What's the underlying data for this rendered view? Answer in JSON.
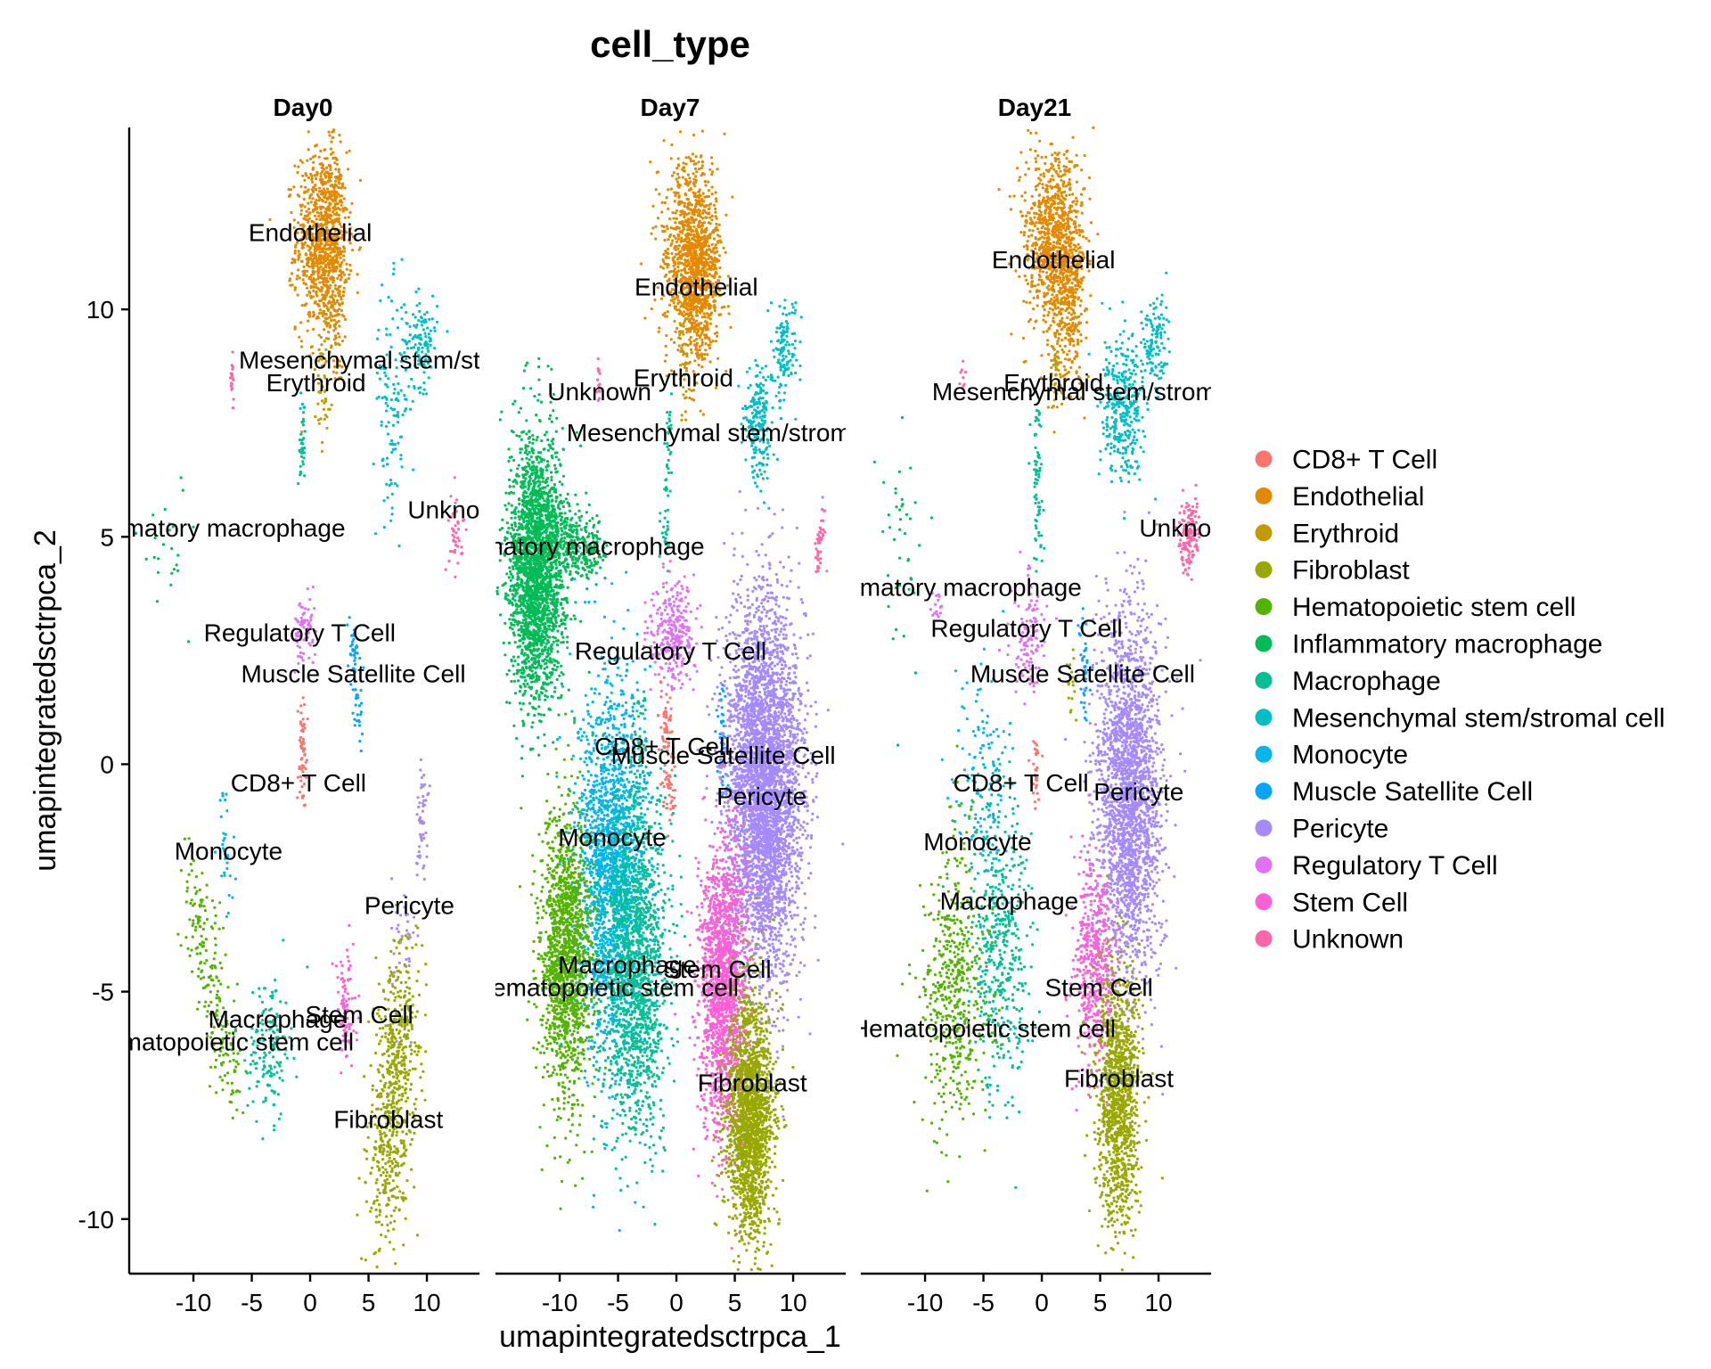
{
  "chart_data": {
    "type": "scatter",
    "title": "cell_type",
    "xlabel": "umapintegratedsctrpca_1",
    "ylabel": "umapintegratedsctrpca_2",
    "xlim": [
      -15.5,
      14.5
    ],
    "ylim": [
      -11.2,
      14.0
    ],
    "x_ticks": [
      -10,
      -5,
      0,
      5,
      10
    ],
    "x_tick_labels": [
      "-10",
      "-5",
      "0",
      "5",
      "10"
    ],
    "y_ticks": [
      -10,
      -5,
      0,
      5,
      10
    ],
    "y_tick_labels": [
      "-10",
      "-5",
      "0",
      "5",
      "10"
    ],
    "grid": false,
    "legend_position": "right",
    "series": [
      {
        "name": "CD8+ T Cell",
        "color": "#F8766D"
      },
      {
        "name": "Endothelial",
        "color": "#E38900"
      },
      {
        "name": "Erythroid",
        "color": "#C49A00"
      },
      {
        "name": "Fibroblast",
        "color": "#99A800"
      },
      {
        "name": "Hematopoietic stem cell",
        "color": "#53B400"
      },
      {
        "name": "Inflammatory macrophage",
        "color": "#00BC56"
      },
      {
        "name": "Macrophage",
        "color": "#00C094"
      },
      {
        "name": "Mesenchymal stem/stromal cell",
        "color": "#00BFC4"
      },
      {
        "name": "Monocyte",
        "color": "#00B6EB"
      },
      {
        "name": "Muscle Satellite Cell",
        "color": "#06A4FF"
      },
      {
        "name": "Pericyte",
        "color": "#A58AFF"
      },
      {
        "name": "Regulatory T Cell",
        "color": "#DF70F8"
      },
      {
        "name": "Stem Cell",
        "color": "#FB61D7"
      },
      {
        "name": "Unknown",
        "color": "#FF66A8"
      }
    ],
    "facets": [
      {
        "title": "Day0",
        "clusters": [
          {
            "type": "Endothelial",
            "shape": "blob",
            "cx": 1,
            "cy": 11.5,
            "sx": 1.1,
            "sy": 1.0,
            "n": 900
          },
          {
            "type": "Endothelial",
            "shape": "blob",
            "cx": 2.2,
            "cy": 11.0,
            "sx": 0.5,
            "sy": 1.4,
            "n": 200
          },
          {
            "type": "Erythroid",
            "shape": "blob",
            "cx": 1.2,
            "cy": 8.8,
            "sx": 0.3,
            "sy": 0.9,
            "n": 60
          },
          {
            "type": "Mesenchymal stem/stromal cell",
            "shape": "blob",
            "cx": 9.5,
            "cy": 9.3,
            "sx": 0.7,
            "sy": 0.5,
            "n": 120
          },
          {
            "type": "Mesenchymal stem/stromal cell",
            "shape": "blob",
            "cx": 7,
            "cy": 8.0,
            "sx": 0.8,
            "sy": 1.2,
            "n": 120
          },
          {
            "type": "Macrophage",
            "shape": "line",
            "x1": -0.6,
            "y1": 8.0,
            "x2": -0.8,
            "y2": 6.2,
            "w": 0.15,
            "n": 40
          },
          {
            "type": "Inflammatory macrophage",
            "shape": "blob",
            "cx": -12.5,
            "cy": 5.0,
            "sx": 1.0,
            "sy": 0.8,
            "n": 25
          },
          {
            "type": "Unknown",
            "shape": "blob",
            "cx": -6.7,
            "cy": 8.4,
            "sx": 0.1,
            "sy": 0.25,
            "n": 20
          },
          {
            "type": "Unknown",
            "shape": "blob",
            "cx": 12.5,
            "cy": 5.2,
            "sx": 0.3,
            "sy": 0.5,
            "n": 40
          },
          {
            "type": "Regulatory T Cell",
            "shape": "blob",
            "cx": -0.5,
            "cy": 2.9,
            "sx": 0.5,
            "sy": 0.4,
            "n": 80
          },
          {
            "type": "Muscle Satellite Cell",
            "shape": "line",
            "x1": 3.5,
            "y1": 3.2,
            "x2": 4.2,
            "y2": 0.6,
            "w": 0.2,
            "n": 60
          },
          {
            "type": "CD8+ T Cell",
            "shape": "line",
            "x1": -0.6,
            "y1": 1.1,
            "x2": -0.6,
            "y2": -0.8,
            "w": 0.2,
            "n": 60
          },
          {
            "type": "Monocyte",
            "shape": "line",
            "x1": -7.5,
            "y1": -0.8,
            "x2": -7.0,
            "y2": -3.0,
            "w": 0.3,
            "n": 30
          },
          {
            "type": "Pericyte",
            "shape": "line",
            "x1": 9.7,
            "y1": -0.3,
            "x2": 9.5,
            "y2": -2.2,
            "w": 0.3,
            "n": 50
          },
          {
            "type": "Pericyte",
            "shape": "blob",
            "cx": 8.0,
            "cy": -4.0,
            "sx": 0.5,
            "sy": 0.8,
            "n": 40
          },
          {
            "type": "Hematopoietic stem cell",
            "shape": "line",
            "x1": -10.5,
            "y1": -2.5,
            "x2": -6.5,
            "y2": -7.0,
            "w": 0.6,
            "n": 220
          },
          {
            "type": "Macrophage",
            "shape": "blob",
            "cx": -3.5,
            "cy": -6.2,
            "sx": 0.9,
            "sy": 0.8,
            "n": 150
          },
          {
            "type": "Stem Cell",
            "shape": "blob",
            "cx": 3.0,
            "cy": -5.5,
            "sx": 0.5,
            "sy": 0.7,
            "n": 90
          },
          {
            "type": "Fibroblast",
            "shape": "line",
            "x1": 8.0,
            "y1": -5.0,
            "x2": 6.3,
            "y2": -9.6,
            "w": 0.9,
            "n": 650
          }
        ],
        "labels": [
          {
            "text": "Endothelial",
            "x": 0,
            "y": 11.7
          },
          {
            "text": "Mesenchymal stem/stromal cell",
            "x": 8.8,
            "y": 8.9
          },
          {
            "text": "Erythroid",
            "x": 0.5,
            "y": 8.4
          },
          {
            "text": "Inflammatory macrophage",
            "x": -9.4,
            "y": 5.2
          },
          {
            "text": "Unknown",
            "x": 12.8,
            "y": 5.6
          },
          {
            "text": "Regulatory T Cell",
            "x": -0.9,
            "y": 2.9
          },
          {
            "text": "Muscle Satellite Cell",
            "x": 3.7,
            "y": 2.0
          },
          {
            "text": "CD8+ T Cell",
            "x": -1.0,
            "y": -0.4
          },
          {
            "text": "Monocyte",
            "x": -7.0,
            "y": -1.9
          },
          {
            "text": "Pericyte",
            "x": 8.5,
            "y": -3.1
          },
          {
            "text": "Stem Cell",
            "x": 4.2,
            "y": -5.5
          },
          {
            "text": "Macrophage",
            "x": -2.8,
            "y": -5.6
          },
          {
            "text": "Hematopoietic stem cell",
            "x": -7.6,
            "y": -6.1
          },
          {
            "text": "Fibroblast",
            "x": 6.7,
            "y": -7.8
          }
        ]
      },
      {
        "title": "Day7",
        "clusters": [
          {
            "type": "Endothelial",
            "shape": "blob",
            "cx": 1.2,
            "cy": 11.3,
            "sx": 1.2,
            "sy": 1.0,
            "n": 900
          },
          {
            "type": "Endothelial",
            "shape": "blob",
            "cx": 2.2,
            "cy": 10.4,
            "sx": 0.8,
            "sy": 0.9,
            "n": 400
          },
          {
            "type": "Erythroid",
            "shape": "blob",
            "cx": 0.6,
            "cy": 8.9,
            "sx": 0.3,
            "sy": 0.8,
            "n": 50
          },
          {
            "type": "Mesenchymal stem/stromal cell",
            "shape": "blob",
            "cx": 7.0,
            "cy": 7.5,
            "sx": 0.6,
            "sy": 0.6,
            "n": 220
          },
          {
            "type": "Mesenchymal stem/stromal cell",
            "shape": "blob",
            "cx": 9.3,
            "cy": 9.2,
            "sx": 0.6,
            "sy": 0.5,
            "n": 130
          },
          {
            "type": "Macrophage",
            "shape": "line",
            "x1": -0.5,
            "y1": 8.0,
            "x2": -1.0,
            "y2": 4.5,
            "w": 0.2,
            "n": 60
          },
          {
            "type": "Inflammatory macrophage",
            "shape": "blob",
            "cx": -12.0,
            "cy": 4.3,
            "sx": 1.2,
            "sy": 1.4,
            "n": 2300
          },
          {
            "type": "Inflammatory macrophage",
            "shape": "line",
            "x1": -10.5,
            "y1": 5.0,
            "x2": -6.5,
            "y2": 4.7,
            "w": 0.4,
            "n": 300
          },
          {
            "type": "Unknown",
            "shape": "blob",
            "cx": -6.7,
            "cy": 8.4,
            "sx": 0.1,
            "sy": 0.25,
            "n": 15
          },
          {
            "type": "Unknown",
            "shape": "line",
            "x1": 12.5,
            "y1": 5.6,
            "x2": 12.0,
            "y2": 4.2,
            "w": 0.15,
            "n": 40
          },
          {
            "type": "Regulatory T Cell",
            "shape": "blob",
            "cx": -0.3,
            "cy": 2.8,
            "sx": 1.0,
            "sy": 0.6,
            "n": 300
          },
          {
            "type": "Macrophage",
            "shape": "line",
            "x1": -3.0,
            "y1": 1.5,
            "x2": -3.2,
            "y2": -1.0,
            "w": 0.4,
            "n": 60
          },
          {
            "type": "CD8+ T Cell",
            "shape": "line",
            "x1": -1.0,
            "y1": 1.5,
            "x2": -0.5,
            "y2": -1.0,
            "w": 0.3,
            "n": 100
          },
          {
            "type": "Muscle Satellite Cell",
            "shape": "line",
            "x1": 3.8,
            "y1": 1.5,
            "x2": 4.0,
            "y2": -0.5,
            "w": 0.2,
            "n": 50
          },
          {
            "type": "Monocyte",
            "shape": "blob",
            "cx": -5.5,
            "cy": -2.3,
            "sx": 1.5,
            "sy": 2.0,
            "n": 2000
          },
          {
            "type": "Macrophage",
            "shape": "blob",
            "cx": -3.5,
            "cy": -4.5,
            "sx": 1.4,
            "sy": 1.8,
            "n": 1500
          },
          {
            "type": "Hematopoietic stem cell",
            "shape": "blob",
            "cx": -9.5,
            "cy": -4.3,
            "sx": 1.1,
            "sy": 1.6,
            "n": 1500
          },
          {
            "type": "Pericyte",
            "shape": "blob",
            "cx": 7.5,
            "cy": -0.5,
            "sx": 1.6,
            "sy": 2.0,
            "n": 4000
          },
          {
            "type": "Stem Cell",
            "shape": "blob",
            "cx": 4.0,
            "cy": -5.0,
            "sx": 1.0,
            "sy": 1.6,
            "n": 1700
          },
          {
            "type": "Fibroblast",
            "shape": "blob",
            "cx": 6.3,
            "cy": -7.8,
            "sx": 1.0,
            "sy": 1.3,
            "n": 1800
          }
        ],
        "labels": [
          {
            "text": "Endothelial",
            "x": 1.7,
            "y": 10.5
          },
          {
            "text": "Unknown",
            "x": -6.6,
            "y": 8.2
          },
          {
            "text": "Erythroid",
            "x": 0.6,
            "y": 8.5
          },
          {
            "text": "Mesenchymal stem/stromal cell",
            "x": 5.5,
            "y": 7.3
          },
          {
            "text": "Inflammatory macrophage",
            "x": -10.0,
            "y": 4.8
          },
          {
            "text": "Regulatory T Cell",
            "x": -0.5,
            "y": 2.5
          },
          {
            "text": "CD8+ T Cell",
            "x": -1.2,
            "y": 0.4
          },
          {
            "text": "Muscle Satellite Cell",
            "x": 4.0,
            "y": 0.2
          },
          {
            "text": "Pericyte",
            "x": 7.3,
            "y": -0.7
          },
          {
            "text": "Monocyte",
            "x": -5.5,
            "y": -1.6
          },
          {
            "text": "Macrophage",
            "x": -4.2,
            "y": -4.4
          },
          {
            "text": "Stem Cell",
            "x": 3.5,
            "y": -4.5
          },
          {
            "text": "Hematopoietic stem cell",
            "x": -6.0,
            "y": -4.9
          },
          {
            "text": "Fibroblast",
            "x": 6.5,
            "y": -7.0
          }
        ]
      },
      {
        "title": "Day21",
        "clusters": [
          {
            "type": "Endothelial",
            "shape": "blob",
            "cx": 1.0,
            "cy": 11.5,
            "sx": 1.2,
            "sy": 1.0,
            "n": 900
          },
          {
            "type": "Endothelial",
            "shape": "blob",
            "cx": 2.4,
            "cy": 10.4,
            "sx": 0.7,
            "sy": 1.0,
            "n": 300
          },
          {
            "type": "Erythroid",
            "shape": "blob",
            "cx": 1.2,
            "cy": 8.8,
            "sx": 0.3,
            "sy": 0.8,
            "n": 50
          },
          {
            "type": "Mesenchymal stem/stromal cell",
            "shape": "blob",
            "cx": 7.0,
            "cy": 7.8,
            "sx": 1.0,
            "sy": 0.8,
            "n": 350
          },
          {
            "type": "Mesenchymal stem/stromal cell",
            "shape": "blob",
            "cx": 9.7,
            "cy": 9.3,
            "sx": 0.6,
            "sy": 0.5,
            "n": 120
          },
          {
            "type": "Macrophage",
            "shape": "line",
            "x1": -0.5,
            "y1": 8.0,
            "x2": -0.2,
            "y2": 4.5,
            "w": 0.2,
            "n": 70
          },
          {
            "type": "Inflammatory macrophage",
            "shape": "blob",
            "cx": -12.0,
            "cy": 4.5,
            "sx": 1.0,
            "sy": 1.5,
            "n": 40
          },
          {
            "type": "Unknown",
            "shape": "blob",
            "cx": 12.6,
            "cy": 5.0,
            "sx": 0.4,
            "sy": 0.4,
            "n": 150
          },
          {
            "type": "Unknown",
            "shape": "blob",
            "cx": -6.8,
            "cy": 8.5,
            "sx": 0.1,
            "sy": 0.2,
            "n": 8
          },
          {
            "type": "Regulatory T Cell",
            "shape": "blob",
            "cx": -1.2,
            "cy": 2.7,
            "sx": 0.7,
            "sy": 0.6,
            "n": 120
          },
          {
            "type": "Regulatory T Cell",
            "shape": "blob",
            "cx": -9.0,
            "cy": 3.5,
            "sx": 0.3,
            "sy": 0.2,
            "n": 15
          },
          {
            "type": "Muscle Satellite Cell",
            "shape": "line",
            "x1": 3.5,
            "y1": 3.2,
            "x2": 3.8,
            "y2": 1.0,
            "w": 0.2,
            "n": 40
          },
          {
            "type": "Fibroblast",
            "shape": "blob",
            "cx": 2.5,
            "cy": 2.0,
            "sx": 0.2,
            "sy": 0.4,
            "n": 20
          },
          {
            "type": "CD8+ T Cell",
            "shape": "line",
            "x1": -0.5,
            "y1": 0.5,
            "x2": -0.5,
            "y2": -0.8,
            "w": 0.2,
            "n": 30
          },
          {
            "type": "Monocyte",
            "shape": "blob",
            "cx": -5.0,
            "cy": -0.5,
            "sx": 1.2,
            "sy": 1.2,
            "n": 150
          },
          {
            "type": "Macrophage",
            "shape": "blob",
            "cx": -3.5,
            "cy": -4.0,
            "sx": 1.2,
            "sy": 1.8,
            "n": 450
          },
          {
            "type": "Hematopoietic stem cell",
            "shape": "blob",
            "cx": -7.5,
            "cy": -5.0,
            "sx": 1.3,
            "sy": 1.5,
            "n": 500
          },
          {
            "type": "Pericyte",
            "shape": "blob",
            "cx": 7.5,
            "cy": -0.8,
            "sx": 1.4,
            "sy": 2.0,
            "n": 2300
          },
          {
            "type": "Stem Cell",
            "shape": "blob",
            "cx": 4.5,
            "cy": -4.5,
            "sx": 0.9,
            "sy": 1.2,
            "n": 500
          },
          {
            "type": "Fibroblast",
            "shape": "blob",
            "cx": 6.6,
            "cy": -7.3,
            "sx": 0.9,
            "sy": 1.4,
            "n": 1200
          }
        ],
        "labels": [
          {
            "text": "Endothelial",
            "x": 1.0,
            "y": 11.1
          },
          {
            "text": "Erythroid",
            "x": 1.0,
            "y": 8.4
          },
          {
            "text": "Mesenchymal stem/stromal cell",
            "x": 5.5,
            "y": 8.2
          },
          {
            "text": "Unknown",
            "x": 12.8,
            "y": 5.2
          },
          {
            "text": "Inflammatory macrophage",
            "x": -9.0,
            "y": 3.9
          },
          {
            "text": "Regulatory T Cell",
            "x": -1.3,
            "y": 3.0
          },
          {
            "text": "Muscle Satellite Cell",
            "x": 3.5,
            "y": 2.0
          },
          {
            "text": "CD8+ T Cell",
            "x": -1.8,
            "y": -0.4
          },
          {
            "text": "Pericyte",
            "x": 8.3,
            "y": -0.6
          },
          {
            "text": "Monocyte",
            "x": -5.5,
            "y": -1.7
          },
          {
            "text": "Macrophage",
            "x": -2.8,
            "y": -3.0
          },
          {
            "text": "Stem Cell",
            "x": 4.9,
            "y": -4.9
          },
          {
            "text": "Hematopoietic stem cell",
            "x": -5.0,
            "y": -5.8
          },
          {
            "text": "Fibroblast",
            "x": 6.6,
            "y": -6.9
          }
        ]
      }
    ]
  }
}
